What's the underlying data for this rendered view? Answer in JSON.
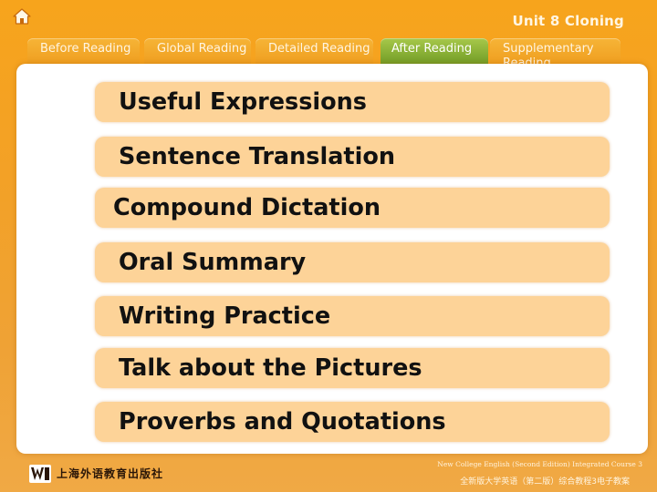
{
  "header": {
    "unit_title": "Unit 8 Cloning"
  },
  "tabs": [
    {
      "label": "Before Reading",
      "active": false
    },
    {
      "label": "Global Reading",
      "active": false
    },
    {
      "label": "Detailed Reading",
      "active": false
    },
    {
      "label": "After Reading",
      "active": true
    },
    {
      "label": "Supplementary Reading",
      "active": false
    }
  ],
  "menu": {
    "items": [
      {
        "label": "Useful Expressions"
      },
      {
        "label": "Sentence Translation"
      },
      {
        "label": "Compound Dictation"
      },
      {
        "label": "Oral Summary"
      },
      {
        "label": "Writing Practice"
      },
      {
        "label": "Talk about the Pictures"
      },
      {
        "label": "Proverbs and Quotations"
      }
    ]
  },
  "footer": {
    "publisher": "上海外语教育出版社",
    "course_en": "New College English (Second Edition) Integrated Course 3",
    "course_cn": "全新版大学英语（第二版）综合教程3电子教案"
  },
  "colors": {
    "background": "#f3a126",
    "tab_active": "#7fa72e",
    "menu_item": "#fdd398"
  },
  "icons": {
    "home": "home-icon",
    "logo": "publisher-logo-icon"
  }
}
